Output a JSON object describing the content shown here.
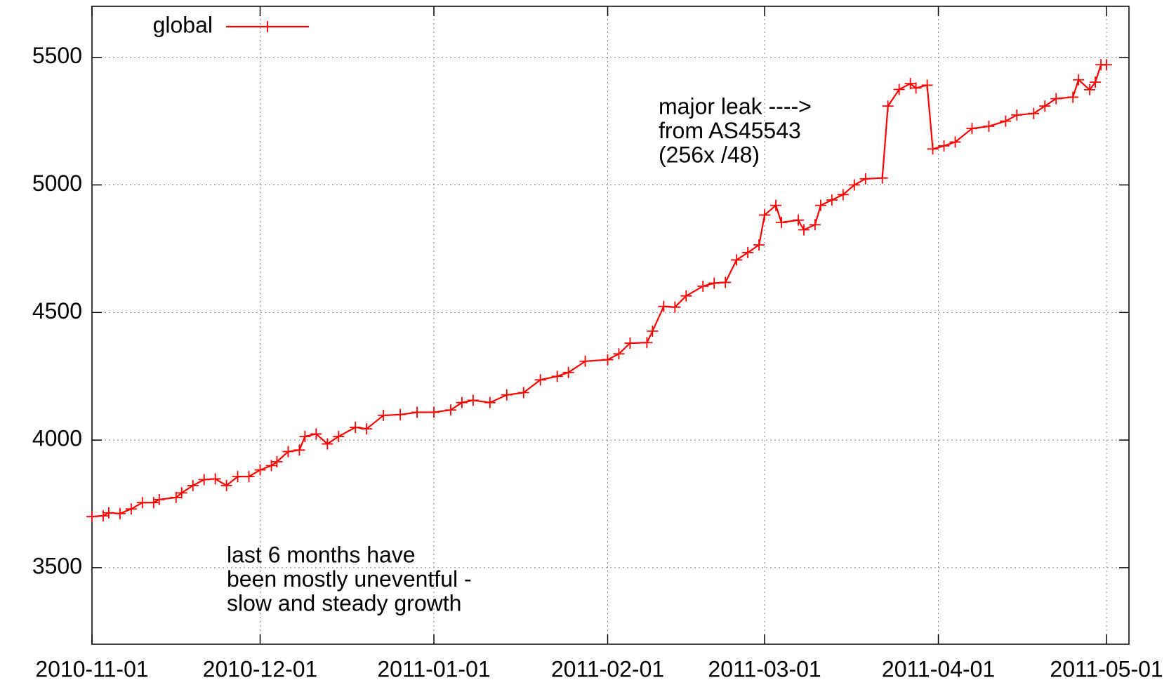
{
  "chart_data": {
    "type": "line",
    "x": [
      "2010-11-01",
      "2010-11-03",
      "2010-11-04",
      "2010-11-06",
      "2010-11-08",
      "2010-11-10",
      "2010-11-12",
      "2010-11-13",
      "2010-11-16",
      "2010-11-17",
      "2010-11-19",
      "2010-11-21",
      "2010-11-23",
      "2010-11-25",
      "2010-11-27",
      "2010-11-29",
      "2010-12-01",
      "2010-12-03",
      "2010-12-04",
      "2010-12-06",
      "2010-12-08",
      "2010-12-09",
      "2010-12-11",
      "2010-12-13",
      "2010-12-15",
      "2010-12-18",
      "2010-12-20",
      "2010-12-23",
      "2010-12-26",
      "2010-12-29",
      "2011-01-01",
      "2011-01-04",
      "2011-01-06",
      "2011-01-08",
      "2011-01-11",
      "2011-01-14",
      "2011-01-17",
      "2011-01-20",
      "2011-01-23",
      "2011-01-25",
      "2011-01-28",
      "2011-02-01",
      "2011-02-03",
      "2011-02-05",
      "2011-02-08",
      "2011-02-09",
      "2011-02-11",
      "2011-02-13",
      "2011-02-15",
      "2011-02-18",
      "2011-02-20",
      "2011-02-22",
      "2011-02-24",
      "2011-02-26",
      "2011-02-28",
      "2011-03-01",
      "2011-03-03",
      "2011-03-04",
      "2011-03-07",
      "2011-03-08",
      "2011-03-10",
      "2011-03-11",
      "2011-03-13",
      "2011-03-15",
      "2011-03-17",
      "2011-03-19",
      "2011-03-22",
      "2011-03-23",
      "2011-03-25",
      "2011-03-27",
      "2011-03-28",
      "2011-03-30",
      "2011-03-31",
      "2011-04-02",
      "2011-04-04",
      "2011-04-07",
      "2011-04-10",
      "2011-04-13",
      "2011-04-15",
      "2011-04-18",
      "2011-04-20",
      "2011-04-22",
      "2011-04-25",
      "2011-04-26",
      "2011-04-28",
      "2011-04-29",
      "2011-04-30",
      "2011-05-01"
    ],
    "series": [
      {
        "name": "global",
        "color": "#ff0000",
        "values": [
          3700,
          3703,
          3715,
          3712,
          3730,
          3755,
          3755,
          3767,
          3775,
          3793,
          3822,
          3845,
          3848,
          3822,
          3857,
          3857,
          3883,
          3900,
          3915,
          3955,
          3961,
          4014,
          4024,
          3985,
          4014,
          4050,
          4044,
          4097,
          4100,
          4109,
          4109,
          4118,
          4147,
          4156,
          4147,
          4177,
          4186,
          4236,
          4250,
          4265,
          4309,
          4315,
          4338,
          4380,
          4382,
          4427,
          4524,
          4521,
          4565,
          4603,
          4615,
          4618,
          4706,
          4735,
          4765,
          4882,
          4920,
          4853,
          4862,
          4824,
          4844,
          4920,
          4941,
          4962,
          5000,
          5024,
          5027,
          5309,
          5374,
          5397,
          5380,
          5391,
          5141,
          5153,
          5168,
          5221,
          5230,
          5250,
          5274,
          5280,
          5309,
          5338,
          5344,
          5412,
          5373,
          5403,
          5471,
          5471
        ]
      }
    ],
    "xlim": [
      "2010-11-01",
      "2011-05-05"
    ],
    "xticks": [
      "2010-11-01",
      "2010-12-01",
      "2011-01-01",
      "2011-02-01",
      "2011-03-01",
      "2011-04-01",
      "2011-05-01"
    ],
    "ylim": [
      3200,
      5700
    ],
    "yticks": [
      3500,
      4000,
      4500,
      5000,
      5500
    ],
    "grid": true,
    "legend": "top-left",
    "annotations": [
      {
        "lines": [
          "major leak  ---->",
          "from AS45543",
          "(256x /48)"
        ]
      },
      {
        "lines": [
          "last 6 months have",
          "been mostly uneventful -",
          "slow and steady growth"
        ]
      }
    ]
  }
}
